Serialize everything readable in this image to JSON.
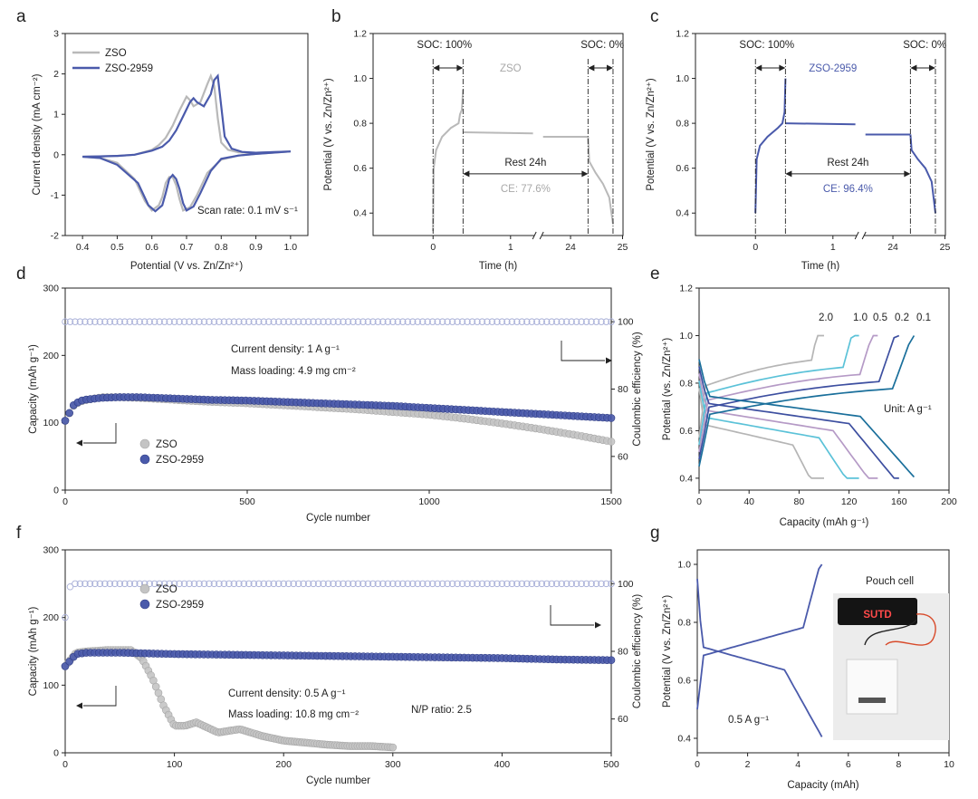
{
  "chart_data": [
    {
      "panel": "a",
      "type": "line",
      "xlabel": "Potential (V vs. Zn/Zn²⁺)",
      "ylabel": "Current density (mA cm⁻²)",
      "xlim": [
        0.35,
        1.05
      ],
      "ylim": [
        -2,
        3
      ],
      "xticks": [
        0.4,
        0.5,
        0.6,
        0.7,
        0.8,
        0.9,
        1.0
      ],
      "yticks": [
        -2,
        -1,
        0,
        1,
        2,
        3
      ],
      "legend": "top-left",
      "annotation": "Scan rate: 0.1 mV s⁻¹",
      "series": [
        {
          "name": "ZSO",
          "color": "#b9b9b9",
          "x": [
            0.4,
            0.45,
            0.5,
            0.55,
            0.6,
            0.62,
            0.64,
            0.66,
            0.68,
            0.7,
            0.71,
            0.72,
            0.74,
            0.76,
            0.77,
            0.78,
            0.79,
            0.8,
            0.82,
            0.85,
            0.9,
            1.0,
            0.9,
            0.85,
            0.8,
            0.76,
            0.73,
            0.71,
            0.69,
            0.68,
            0.67,
            0.66,
            0.65,
            0.64,
            0.63,
            0.62,
            0.6,
            0.58,
            0.55,
            0.5,
            0.45,
            0.4
          ],
          "y": [
            -0.05,
            -0.04,
            -0.03,
            0.0,
            0.12,
            0.24,
            0.42,
            0.72,
            1.1,
            1.44,
            1.35,
            1.2,
            1.3,
            1.75,
            1.95,
            1.7,
            0.9,
            0.3,
            0.12,
            0.06,
            0.05,
            0.08,
            0.02,
            -0.02,
            -0.12,
            -0.45,
            -1.0,
            -1.3,
            -1.38,
            -1.1,
            -0.75,
            -0.55,
            -0.55,
            -0.7,
            -1.05,
            -1.25,
            -1.38,
            -1.15,
            -0.6,
            -0.2,
            -0.08,
            -0.05
          ]
        },
        {
          "name": "ZSO-2959",
          "color": "#4a5aab",
          "x": [
            0.4,
            0.45,
            0.5,
            0.55,
            0.6,
            0.63,
            0.65,
            0.67,
            0.69,
            0.71,
            0.72,
            0.73,
            0.75,
            0.77,
            0.78,
            0.79,
            0.8,
            0.81,
            0.83,
            0.86,
            0.9,
            1.0,
            0.9,
            0.85,
            0.8,
            0.77,
            0.74,
            0.72,
            0.7,
            0.69,
            0.68,
            0.67,
            0.66,
            0.65,
            0.64,
            0.63,
            0.61,
            0.59,
            0.56,
            0.5,
            0.45,
            0.4
          ],
          "y": [
            -0.05,
            -0.04,
            -0.03,
            0.0,
            0.1,
            0.2,
            0.35,
            0.6,
            0.95,
            1.3,
            1.4,
            1.3,
            1.2,
            1.5,
            1.85,
            1.95,
            1.2,
            0.45,
            0.15,
            0.07,
            0.05,
            0.08,
            0.02,
            -0.02,
            -0.1,
            -0.4,
            -0.95,
            -1.28,
            -1.38,
            -1.2,
            -0.85,
            -0.6,
            -0.5,
            -0.6,
            -0.95,
            -1.25,
            -1.4,
            -1.25,
            -0.7,
            -0.25,
            -0.08,
            -0.05
          ]
        }
      ]
    },
    {
      "panel": "b",
      "type": "line",
      "xlabel": "Time (h)",
      "ylabel": "Potential (V vs. Zn/Zn²⁺)",
      "ylim": [
        0.3,
        1.2
      ],
      "yticks": [
        0.4,
        0.6,
        0.8,
        1.0,
        1.2
      ],
      "xticks": [
        "0",
        "1",
        "24",
        "25"
      ],
      "labels": {
        "soc_full": "SOC: 100%",
        "soc_empty": "SOC: 0%",
        "sample": "ZSO",
        "rest": "Rest 24h",
        "ce": "CE: 77.6%"
      },
      "series": [
        {
          "name": "ZSO",
          "color": "#b9b9b9"
        }
      ]
    },
    {
      "panel": "c",
      "type": "line",
      "xlabel": "Time (h)",
      "ylabel": "Potential (V vs. Zn/Zn²⁺)",
      "ylim": [
        0.3,
        1.2
      ],
      "yticks": [
        0.4,
        0.6,
        0.8,
        1.0,
        1.2
      ],
      "xticks": [
        "0",
        "1",
        "24",
        "25"
      ],
      "labels": {
        "soc_full": "SOC: 100%",
        "soc_empty": "SOC: 0%",
        "sample": "ZSO-2959",
        "rest": "Rest 24h",
        "ce": "CE: 96.4%"
      },
      "series": [
        {
          "name": "ZSO-2959",
          "color": "#4a5aab"
        }
      ]
    },
    {
      "panel": "d",
      "type": "scatter",
      "xlabel": "Cycle number",
      "ylabel": "Capacity (mAh g⁻¹)",
      "y2label": "Coulombic efficiency (%)",
      "xlim": [
        0,
        1500
      ],
      "ylim": [
        0,
        300
      ],
      "y2lim": [
        50,
        110
      ],
      "xticks": [
        0,
        500,
        1000,
        1500
      ],
      "yticks": [
        0,
        100,
        200,
        300
      ],
      "y2ticks": [
        60,
        80,
        100
      ],
      "legend": "bottom-left",
      "annotations": [
        "Current density: 1 A g⁻¹",
        "Mass loading: 4.9 mg cm⁻²"
      ],
      "series": [
        {
          "name": "ZSO",
          "color": "#c4c4c4",
          "x": [
            0,
            25,
            50,
            100,
            150,
            200,
            300,
            400,
            500,
            600,
            700,
            800,
            900,
            1000,
            1100,
            1200,
            1300,
            1400,
            1500
          ],
          "y": [
            103,
            127,
            133,
            138,
            138,
            137,
            134,
            131,
            129,
            126,
            123,
            120,
            116,
            112,
            106,
            99,
            91,
            82,
            72
          ]
        },
        {
          "name": "ZSO-2959",
          "color": "#4a5aab",
          "x": [
            0,
            25,
            50,
            100,
            150,
            200,
            300,
            400,
            500,
            600,
            700,
            800,
            900,
            1000,
            1100,
            1200,
            1300,
            1400,
            1500
          ],
          "y": [
            103,
            128,
            134,
            137,
            138,
            138,
            136,
            134,
            133,
            131,
            129,
            127,
            125,
            122,
            119,
            116,
            113,
            110,
            107
          ]
        }
      ],
      "efficiency": {
        "x": [
          0,
          5,
          10,
          50,
          1500
        ],
        "y": [
          100,
          100,
          100,
          100,
          100
        ]
      }
    },
    {
      "panel": "e",
      "type": "line",
      "xlabel": "Capacity (mAh g⁻¹)",
      "ylabel": "Potential (vs. Zn/Zn²⁺)",
      "xlim": [
        0,
        200
      ],
      "ylim": [
        0.35,
        1.2
      ],
      "xticks": [
        0,
        40,
        80,
        120,
        160,
        200
      ],
      "yticks": [
        0.4,
        0.6,
        0.8,
        1.0,
        1.2
      ],
      "annotation": "Unit: A g⁻¹",
      "series": [
        {
          "name": "2.0",
          "color": "#b5b5b5",
          "capacity": 100
        },
        {
          "name": "1.0",
          "color": "#5bc2d8",
          "capacity": 128
        },
        {
          "name": "0.5",
          "color": "#b59ac6",
          "capacity": 143
        },
        {
          "name": "0.2",
          "color": "#3d4fa0",
          "capacity": 160
        },
        {
          "name": "0.1",
          "color": "#1a6f9b",
          "capacity": 172
        }
      ]
    },
    {
      "panel": "f",
      "type": "scatter",
      "xlabel": "Cycle number",
      "ylabel": "Capacity (mAh g⁻¹)",
      "y2label": "Coulombic efficiency (%)",
      "xlim": [
        0,
        500
      ],
      "ylim": [
        0,
        300
      ],
      "y2lim": [
        50,
        110
      ],
      "xticks": [
        0,
        100,
        200,
        300,
        400,
        500
      ],
      "yticks": [
        0,
        100,
        200,
        300
      ],
      "y2ticks": [
        60,
        80,
        100
      ],
      "legend": "top-left",
      "annotations": [
        "Current density: 0.5 A g⁻¹",
        "Mass loading: 10.8 mg cm⁻²",
        "N/P ratio: 2.5"
      ],
      "series": [
        {
          "name": "ZSO",
          "color": "#c4c4c4",
          "x": [
            0,
            10,
            20,
            40,
            60,
            70,
            80,
            90,
            100,
            110,
            120,
            140,
            160,
            180,
            200,
            220,
            240,
            260,
            280,
            300
          ],
          "y": [
            128,
            148,
            150,
            152,
            152,
            140,
            110,
            70,
            40,
            40,
            45,
            30,
            35,
            25,
            18,
            15,
            12,
            10,
            10,
            8
          ]
        },
        {
          "name": "ZSO-2959",
          "color": "#4a5aab",
          "x": [
            0,
            10,
            20,
            50,
            100,
            150,
            200,
            250,
            300,
            350,
            400,
            450,
            500
          ],
          "y": [
            128,
            146,
            148,
            148,
            146,
            145,
            144,
            143,
            142,
            141,
            140,
            138,
            137
          ]
        }
      ],
      "efficiency": {
        "x": [
          0,
          5,
          500
        ],
        "y": [
          90,
          100,
          100
        ]
      }
    },
    {
      "panel": "g",
      "type": "line",
      "xlabel": "Capacity (mAh)",
      "ylabel": "Potential (V vs. Zn/Zn²⁺)",
      "xlim": [
        0,
        10
      ],
      "ylim": [
        0.35,
        1.05
      ],
      "xticks": [
        0,
        2,
        4,
        6,
        8,
        10
      ],
      "yticks": [
        0.4,
        0.6,
        0.8,
        1.0
      ],
      "annotations": [
        "0.5 A g⁻¹",
        "Pouch cell"
      ],
      "photo_text": "SUTD",
      "series": [
        {
          "name": "ZSO-2959",
          "color": "#4a5aab"
        }
      ]
    }
  ]
}
